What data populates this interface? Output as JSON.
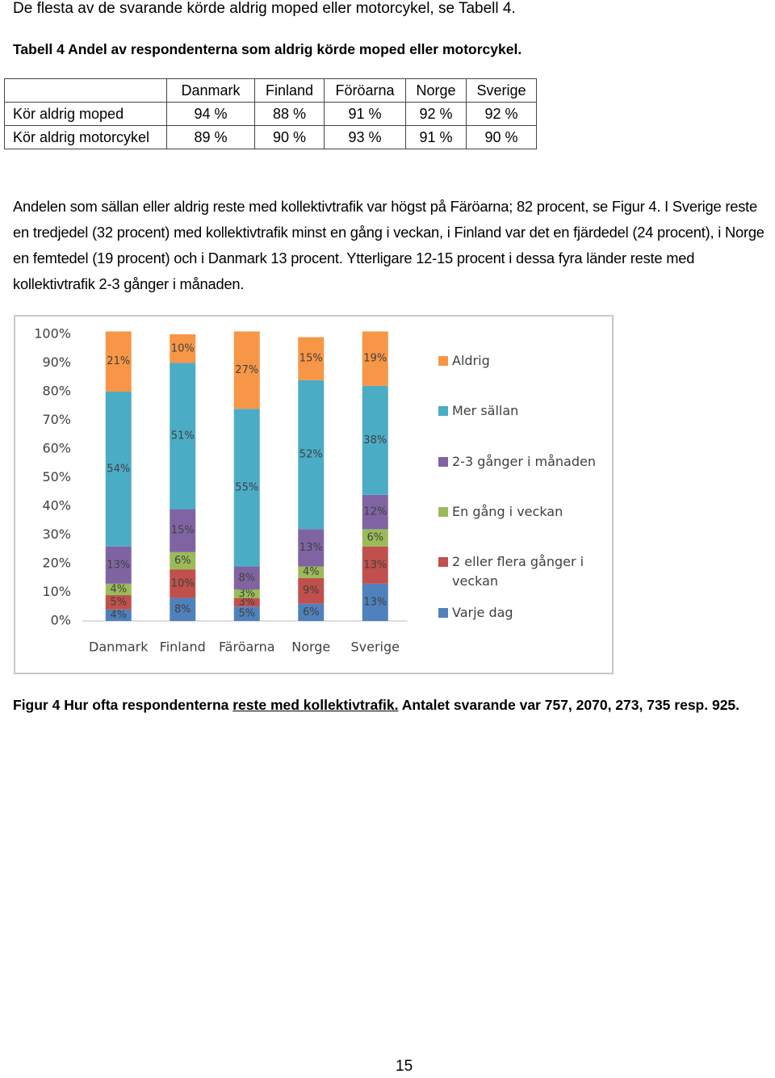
{
  "intro": "De flesta av de svarande körde aldrig moped eller motorcykel, se Tabell 4.",
  "table_caption": "Tabell 4 Andel av respondenterna som aldrig körde moped eller motorcykel.",
  "table": {
    "header": [
      "Danmark",
      "Finland",
      "Föröarna",
      "Norge",
      "Sverige"
    ],
    "rows": [
      [
        "Kör aldrig moped",
        "94 %",
        "88 %",
        "91 %",
        "92 %",
        "92 %"
      ],
      [
        "Kör aldrig motorcykel",
        "89 %",
        "90 %",
        "93 %",
        "91 %",
        "90 %"
      ]
    ]
  },
  "paragraph": "Andelen som sällan eller aldrig reste med kollektivtrafik var högst på Färöarna; 82 procent, se Figur 4. I Sverige reste en tredjedel (32 procent) med kollektivtrafik minst en gång i veckan, i Finland var det en fjärdedel (24 procent), i Norge en femtedel (19 procent) och i Danmark 13 procent. Ytterligare 12-15 procent i dessa fyra länder reste med kollektivtrafik 2-3 gånger i månaden.",
  "chart_data": {
    "type": "stacked_bar",
    "categories": [
      "Danmark",
      "Finland",
      "Färöarna",
      "Norge",
      "Sverige"
    ],
    "ylim": [
      0,
      100
    ],
    "yticks": [
      {
        "value": 0,
        "label": "0%"
      },
      {
        "value": 10,
        "label": "10%"
      },
      {
        "value": 20,
        "label": "20%"
      },
      {
        "value": 30,
        "label": "30%"
      },
      {
        "value": 40,
        "label": "40%"
      },
      {
        "value": 50,
        "label": "50%"
      },
      {
        "value": 60,
        "label": "60%"
      },
      {
        "value": 70,
        "label": "70%"
      },
      {
        "value": 80,
        "label": "80%"
      },
      {
        "value": 90,
        "label": "90%"
      },
      {
        "value": 100,
        "label": "100%"
      }
    ],
    "grid": false,
    "legend": "right",
    "series": [
      {
        "name": "Varje dag",
        "color": "#4f81bd",
        "values": [
          4,
          8,
          5,
          6,
          13
        ],
        "value_labels": [
          "4%",
          "8%",
          "5%",
          "6%",
          "13%"
        ]
      },
      {
        "name": "2 eller flera gånger i veckan",
        "color": "#c0504d",
        "values": [
          5,
          10,
          3,
          9,
          13
        ],
        "value_labels": [
          "5%",
          "10%",
          "3%",
          "9%",
          "13%"
        ]
      },
      {
        "name": "En gång i veckan",
        "color": "#9bbb59",
        "values": [
          4,
          6,
          3,
          4,
          6
        ],
        "value_labels": [
          "4%",
          "6%",
          "3%",
          "4%",
          "6%"
        ]
      },
      {
        "name": "2-3 gånger i månaden",
        "color": "#8064a2",
        "values": [
          13,
          15,
          8,
          13,
          12
        ],
        "value_labels": [
          "13%",
          "15%",
          "8%",
          "13%",
          "12%"
        ]
      },
      {
        "name": "Mer sällan",
        "color": "#4bacc6",
        "values": [
          54,
          51,
          55,
          52,
          38
        ],
        "value_labels": [
          "54%",
          "51%",
          "55%",
          "52%",
          "38%"
        ]
      },
      {
        "name": "Aldrig",
        "color": "#f79646",
        "values": [
          21,
          10,
          27,
          15,
          19
        ],
        "value_labels": [
          "21%",
          "10%",
          "27%",
          "15%",
          "19%"
        ]
      }
    ]
  },
  "figure_caption": {
    "prefix": "Figur 4 Hur ofta respondenterna ",
    "link": "reste med kollektivtrafik.",
    "suffix": " Antalet svarande var 757, 2070, 273, 735 resp. 925."
  },
  "page_number": "15"
}
